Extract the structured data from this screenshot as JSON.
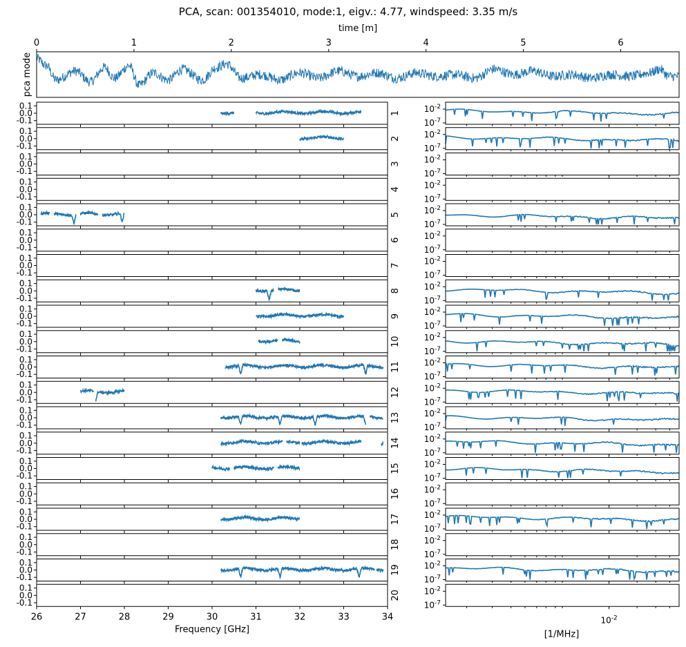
{
  "title": "PCA, scan: 001354010, mode:1, eigv.: 4.77, windspeed: 3.35 m/s",
  "chart_data": [
    {
      "type": "line",
      "name": "pca mode time series",
      "xlabel": "time [m]",
      "ylabel": "pca mode",
      "xlim": [
        0,
        6.6
      ],
      "xticks": [
        0,
        1,
        2,
        3,
        4,
        5,
        6
      ],
      "color": "#1f77b4",
      "description_points_x": [
        0,
        0.1,
        0.2,
        0.4,
        0.55,
        0.7,
        0.8,
        0.95,
        1.05,
        1.2,
        1.35,
        1.5,
        1.7,
        1.85,
        1.95,
        2.1,
        2.3,
        2.5,
        2.7,
        2.9,
        3.1,
        3.3,
        3.5,
        3.7,
        3.9,
        4.1,
        4.3,
        4.5,
        4.7,
        4.9,
        5.1,
        5.3,
        5.5,
        5.7,
        5.9,
        6.1,
        6.3,
        6.4,
        6.5,
        6.6
      ],
      "description_points_y": [
        0.9,
        0.5,
        -0.3,
        0.2,
        -0.4,
        0.4,
        -0.2,
        0.5,
        -0.6,
        0.1,
        -0.3,
        0.3,
        -0.3,
        0.4,
        0.6,
        -0.2,
        0.0,
        -0.3,
        0.1,
        -0.2,
        0.2,
        -0.1,
        0.1,
        -0.2,
        0.1,
        -0.1,
        0.0,
        -0.2,
        0.3,
        0.0,
        0.2,
        -0.1,
        0.0,
        -0.2,
        0.0,
        -0.1,
        0.1,
        0.3,
        -0.1,
        -0.1
      ]
    },
    {
      "type": "line",
      "name": "frequency residuals by channel",
      "xlabel": "Frequency [GHz]",
      "xlim": [
        26,
        34
      ],
      "xticks": [
        26,
        27,
        28,
        29,
        30,
        31,
        32,
        33,
        34
      ],
      "ylim": [
        -0.15,
        0.15
      ],
      "yticks": [
        "0.1",
        "0.0",
        "-0.1"
      ],
      "color": "#1f77b4",
      "series": [
        {
          "name": "1",
          "segments": [
            [
              30.2,
              30.5
            ],
            [
              31.0,
              33.4
            ]
          ],
          "dips": []
        },
        {
          "name": "2",
          "segments": [
            [
              32.0,
              33.0
            ]
          ],
          "dips": []
        },
        {
          "name": "3",
          "segments": [],
          "dips": []
        },
        {
          "name": "4",
          "segments": [],
          "dips": []
        },
        {
          "name": "5",
          "segments": [
            [
              26.1,
              26.3
            ],
            [
              26.4,
              26.9
            ],
            [
              27.0,
              27.4
            ],
            [
              27.5,
              28.0
            ]
          ],
          "dips": [
            26.85,
            27.95
          ]
        },
        {
          "name": "6",
          "segments": [],
          "dips": []
        },
        {
          "name": "7",
          "segments": [],
          "dips": []
        },
        {
          "name": "8",
          "segments": [
            [
              31.0,
              31.4
            ],
            [
              31.5,
              32.0
            ]
          ],
          "dips": [
            31.3
          ]
        },
        {
          "name": "9",
          "segments": [
            [
              31.0,
              33.0
            ]
          ],
          "dips": []
        },
        {
          "name": "10",
          "segments": [
            [
              31.05,
              31.5
            ],
            [
              31.6,
              32.0
            ]
          ],
          "dips": []
        },
        {
          "name": "11",
          "segments": [
            [
              30.3,
              33.9
            ]
          ],
          "dips": [
            30.65,
            33.5
          ]
        },
        {
          "name": "12",
          "segments": [
            [
              27.0,
              27.3
            ],
            [
              27.35,
              27.55
            ],
            [
              27.55,
              28.0
            ]
          ],
          "dips": [
            27.35
          ]
        },
        {
          "name": "13",
          "segments": [
            [
              30.2,
              33.5
            ],
            [
              33.6,
              33.9
            ]
          ],
          "dips": [
            30.65,
            31.55,
            32.35,
            33.5
          ]
        },
        {
          "name": "14",
          "segments": [
            [
              30.2,
              31.6
            ],
            [
              31.7,
              32.0
            ],
            [
              32.05,
              33.4
            ],
            [
              33.85,
              33.9
            ]
          ],
          "dips": []
        },
        {
          "name": "15",
          "segments": [
            [
              30.0,
              30.4
            ],
            [
              30.5,
              31.4
            ],
            [
              31.5,
              32.0
            ]
          ],
          "dips": []
        },
        {
          "name": "16",
          "segments": [],
          "dips": []
        },
        {
          "name": "17",
          "segments": [
            [
              30.2,
              32.0
            ]
          ],
          "dips": []
        },
        {
          "name": "18",
          "segments": [],
          "dips": []
        },
        {
          "name": "19",
          "segments": [
            [
              30.2,
              33.7
            ],
            [
              33.75,
              33.9
            ]
          ],
          "dips": [
            30.65,
            31.55,
            33.35
          ]
        },
        {
          "name": "20",
          "segments": [],
          "dips": []
        }
      ]
    },
    {
      "type": "line",
      "name": "power spectra by channel",
      "xlabel": "[1/MHz]",
      "xscale": "log",
      "yscale": "log",
      "ylim": [
        1e-07,
        0.1
      ],
      "yticks": [
        "10^-2",
        "10^-7"
      ],
      "xtick_label": "10^-2",
      "color": "#1f77b4",
      "series_with_data": [
        "1",
        "2",
        "5",
        "8",
        "9",
        "10",
        "11",
        "12",
        "13",
        "14",
        "15",
        "17",
        "19"
      ]
    }
  ]
}
